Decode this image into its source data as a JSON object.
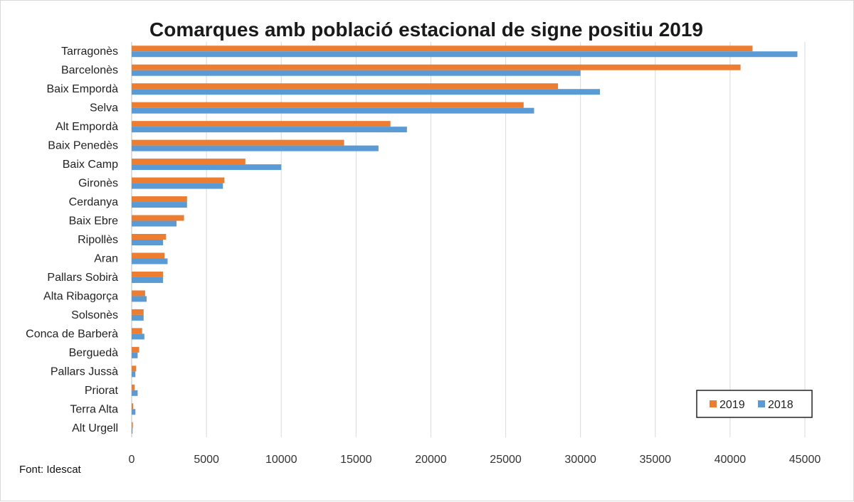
{
  "chart_data": {
    "type": "bar",
    "orientation": "horizontal",
    "title": "Comarques amb població estacional de signe positiu 2019",
    "source": "Font: Idescat",
    "categories": [
      "Tarragonès",
      "Barcelonès",
      "Baix Empordà",
      "Selva",
      "Alt Empordà",
      "Baix Penedès",
      "Baix Camp",
      "Gironès",
      "Cerdanya",
      "Baix Ebre",
      "Ripollès",
      "Aran",
      "Pallars Sobirà",
      "Alta Ribagorça",
      "Solsonès",
      "Conca de Barberà",
      "Berguedà",
      "Pallars Jussà",
      "Priorat",
      "Terra Alta",
      "Alt Urgell"
    ],
    "series": [
      {
        "name": "2019",
        "color": "#ED7D31",
        "values": [
          41500,
          40700,
          28500,
          26200,
          17300,
          14200,
          7600,
          6200,
          3700,
          3500,
          2300,
          2200,
          2100,
          900,
          800,
          700,
          500,
          300,
          200,
          100,
          80
        ]
      },
      {
        "name": "2018",
        "color": "#5B9BD5",
        "values": [
          44500,
          30000,
          31300,
          26900,
          18400,
          16500,
          10000,
          6100,
          3700,
          3000,
          2100,
          2400,
          2100,
          1000,
          800,
          850,
          400,
          250,
          400,
          250,
          60
        ]
      }
    ],
    "xlim": [
      0,
      45000
    ],
    "xticks": [
      "0",
      "5000",
      "10000",
      "15000",
      "20000",
      "25000",
      "30000",
      "35000",
      "40000",
      "45000"
    ],
    "grid": true,
    "legend_position": "bottom-right"
  }
}
